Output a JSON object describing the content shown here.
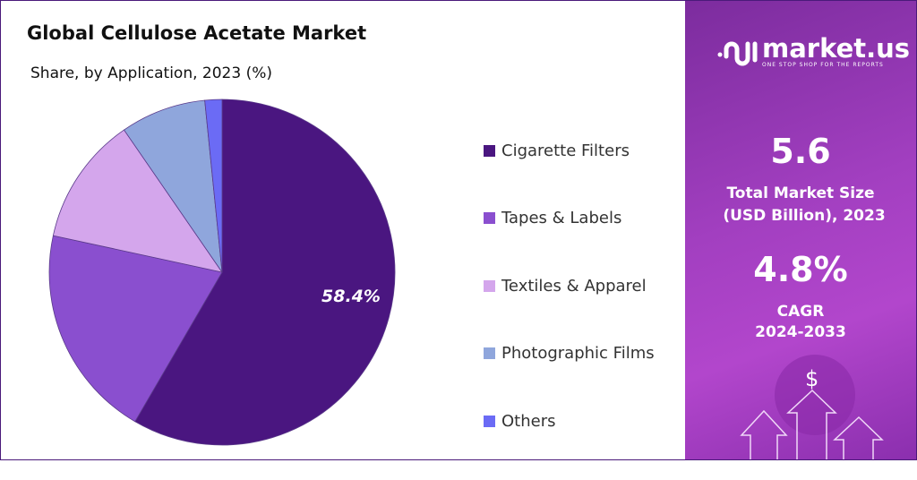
{
  "chart_data": {
    "type": "pie",
    "title": "Global Cellulose Acetate Market",
    "subtitle": "Share, by Application, 2023 (%)",
    "categories": [
      "Cigarette Filters",
      "Tapes & Labels",
      "Textiles & Apparel",
      "Photographic Films",
      "Others"
    ],
    "values": [
      58.4,
      20.0,
      12.0,
      8.0,
      1.6
    ],
    "colors": [
      "#4a1680",
      "#8a4fcf",
      "#d4a6ec",
      "#8fa6dc",
      "#6b6bf5"
    ],
    "data_labels": [
      "58.4%",
      "",
      "",
      "",
      ""
    ],
    "legend_position": "right"
  },
  "sidebar": {
    "brand": "market.us",
    "tagline": "ONE STOP SHOP FOR THE REPORTS",
    "market_size": "5.6",
    "market_size_label_1": "Total Market Size",
    "market_size_label_2": "(USD Billion), 2023",
    "cagr": "4.8%",
    "cagr_label_1": "CAGR",
    "cagr_label_2": "2024-2033",
    "dollar_symbol": "$"
  }
}
